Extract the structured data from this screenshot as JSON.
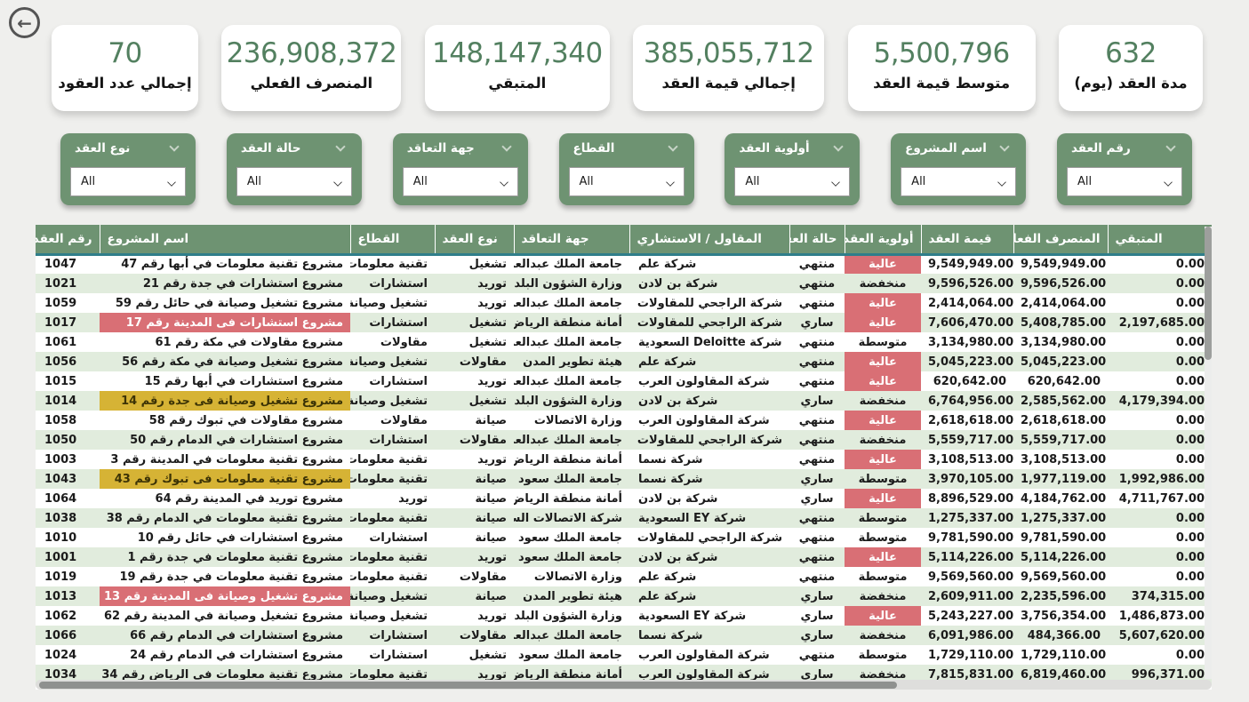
{
  "colors": {
    "page_bg": "#efefed",
    "kpi_value_green": "#538060",
    "filter_green": "#6e9372",
    "table_header_green": "#6e9372",
    "row_alt_green": "#e1ecdd",
    "highlight_red": "#d96f75",
    "highlight_yellow": "#d6b335",
    "header_underline_teal": "#2f7e8a"
  },
  "icons": {
    "back_arrow": "←"
  },
  "kpis": [
    {
      "value": "632",
      "label": "مدة العقد (يوم)"
    },
    {
      "value": "5,500,796",
      "label": "متوسط قيمة العقد"
    },
    {
      "value": "385,055,712",
      "label": "إجمالي قيمة العقد"
    },
    {
      "value": "148,147,340",
      "label": "المتبقي"
    },
    {
      "value": "236,908,372",
      "label": "المنصرف الفعلي"
    },
    {
      "value": "70",
      "label": "إجمالي عدد العقود"
    }
  ],
  "filters": [
    {
      "label": "رقم العقد",
      "value": "All"
    },
    {
      "label": "اسم المشروع",
      "value": "All"
    },
    {
      "label": "أولوية العقد",
      "value": "All"
    },
    {
      "label": "القطاع",
      "value": "All"
    },
    {
      "label": "جهة التعاقد",
      "value": "All"
    },
    {
      "label": "حالة العقد",
      "value": "All"
    },
    {
      "label": "نوع العقد",
      "value": "All"
    }
  ],
  "table": {
    "columns": [
      "رقم العقد",
      "اسم المشروع",
      "القطاع",
      "نوع العقد",
      "جهة التعاقد",
      "المقاول / الاستشاري",
      "حالة العقد",
      "أولوية العقد",
      "قيمة العقد",
      "المنصرف الفعلي",
      "المتبقي"
    ],
    "column_keys": [
      "contract-no",
      "project-name",
      "sector",
      "contract-type",
      "contracting-entity",
      "contractor-consultant",
      "contract-status",
      "contract-priority",
      "contract-value",
      "actual-spent",
      "remaining"
    ],
    "rows": [
      {
        "h": null,
        "p": "high",
        "c": [
          "1047",
          "مشروع تقنية معلومات في أبها رقم 47",
          "تقنية معلومات",
          "تشغيل",
          "جامعة الملك عبدالعزيز",
          "شركة علم",
          "منتهي",
          "عالية",
          "9,549,949.00",
          "9,549,949.00",
          "0.00"
        ]
      },
      {
        "h": null,
        "p": "low",
        "c": [
          "1021",
          "مشروع استشارات في جدة رقم 21",
          "استشارات",
          "توريد",
          "وزارة الشؤون البلدية",
          "شركة بن لادن",
          "منتهي",
          "منخفضة",
          "9,596,526.00",
          "9,596,526.00",
          "0.00"
        ]
      },
      {
        "h": null,
        "p": "high",
        "c": [
          "1059",
          "مشروع تشغيل وصيانة في حائل رقم 59",
          "تشغيل وصيانة",
          "توريد",
          "جامعة الملك عبدالعزيز",
          "شركة الراجحي للمقاولات",
          "منتهي",
          "عالية",
          "2,414,064.00",
          "2,414,064.00",
          "0.00"
        ]
      },
      {
        "h": "red",
        "p": "high",
        "c": [
          "1017",
          "مشروع استشارات فى المدينة رقم 17",
          "استشارات",
          "تشغيل",
          "أمانة منطقة الرياض",
          "شركة الراجحي للمقاولات",
          "ساري",
          "عالية",
          "7,606,470.00",
          "5,408,785.00",
          "2,197,685.00"
        ]
      },
      {
        "h": null,
        "p": "med",
        "c": [
          "1061",
          "مشروع مقاولات في مكة رقم 61",
          "مقاولات",
          "تشغيل",
          "جامعة الملك عبدالعزيز",
          "شركة Deloitte السعودية",
          "منتهي",
          "متوسطة",
          "3,134,980.00",
          "3,134,980.00",
          "0.00"
        ]
      },
      {
        "h": null,
        "p": "high",
        "c": [
          "1056",
          "مشروع تشغيل وصيانة في مكة رقم 56",
          "تشغيل وصيانة",
          "مقاولات",
          "هيئة تطوير المدن",
          "شركة علم",
          "منتهي",
          "عالية",
          "5,045,223.00",
          "5,045,223.00",
          "0.00"
        ]
      },
      {
        "h": null,
        "p": "high",
        "c": [
          "1015",
          "مشروع استشارات في أبها رقم 15",
          "استشارات",
          "توريد",
          "جامعة الملك عبدالعزيز",
          "شركة المقاولون العرب",
          "منتهي",
          "عالية",
          "620,642.00",
          "620,642.00",
          "0.00"
        ]
      },
      {
        "h": "yellow",
        "p": "low",
        "c": [
          "1014",
          "مشروع تشغيل وصيانة فى جدة رقم 14",
          "تشغيل وصيانة",
          "تشغيل",
          "وزارة الشؤون البلدية",
          "شركة بن لادن",
          "ساري",
          "منخفضة",
          "6,764,956.00",
          "2,585,562.00",
          "4,179,394.00"
        ]
      },
      {
        "h": null,
        "p": "high",
        "c": [
          "1058",
          "مشروع مقاولات في تبوك رقم 58",
          "مقاولات",
          "صيانة",
          "وزارة الاتصالات",
          "شركة المقاولون العرب",
          "منتهي",
          "عالية",
          "2,618,618.00",
          "2,618,618.00",
          "0.00"
        ]
      },
      {
        "h": null,
        "p": "low",
        "c": [
          "1050",
          "مشروع استشارات في الدمام رقم 50",
          "استشارات",
          "مقاولات",
          "جامعة الملك عبدالعزيز",
          "شركة الراجحي للمقاولات",
          "منتهي",
          "منخفضة",
          "5,559,717.00",
          "5,559,717.00",
          "0.00"
        ]
      },
      {
        "h": null,
        "p": "high",
        "c": [
          "1003",
          "مشروع تقنية معلومات في المدينة رقم 3",
          "تقنية معلومات",
          "توريد",
          "أمانة منطقة الرياض",
          "شركة نسما",
          "منتهي",
          "عالية",
          "3,108,513.00",
          "3,108,513.00",
          "0.00"
        ]
      },
      {
        "h": "yellow",
        "p": "med",
        "c": [
          "1043",
          "مشروع تقنية معلومات فى تبوك رقم 43",
          "تقنية معلومات",
          "صيانة",
          "جامعة الملك سعود",
          "شركة نسما",
          "ساري",
          "متوسطة",
          "3,970,105.00",
          "1,977,119.00",
          "1,992,986.00"
        ]
      },
      {
        "h": null,
        "p": "high",
        "c": [
          "1064",
          "مشروع توريد في المدينة رقم 64",
          "توريد",
          "صيانة",
          "أمانة منطقة الرياض",
          "شركة بن لادن",
          "ساري",
          "عالية",
          "8,896,529.00",
          "4,184,762.00",
          "4,711,767.00"
        ]
      },
      {
        "h": null,
        "p": "med",
        "c": [
          "1038",
          "مشروع تقنية معلومات في الدمام رقم 38",
          "تقنية معلومات",
          "صيانة",
          "شركة الاتصالات السعودية",
          "شركة EY السعودية",
          "منتهي",
          "متوسطة",
          "1,275,337.00",
          "1,275,337.00",
          "0.00"
        ]
      },
      {
        "h": null,
        "p": "med",
        "c": [
          "1010",
          "مشروع استشارات في حائل رقم 10",
          "استشارات",
          "صيانة",
          "جامعة الملك سعود",
          "شركة الراجحي للمقاولات",
          "منتهي",
          "متوسطة",
          "9,781,590.00",
          "9,781,590.00",
          "0.00"
        ]
      },
      {
        "h": null,
        "p": "high",
        "c": [
          "1001",
          "مشروع تقنية معلومات في جدة رقم 1",
          "تقنية معلومات",
          "توريد",
          "جامعة الملك سعود",
          "شركة بن لادن",
          "منتهي",
          "عالية",
          "5,114,226.00",
          "5,114,226.00",
          "0.00"
        ]
      },
      {
        "h": null,
        "p": "med",
        "c": [
          "1019",
          "مشروع تقنية معلومات في جدة رقم 19",
          "تقنية معلومات",
          "مقاولات",
          "وزارة الاتصالات",
          "شركة علم",
          "منتهي",
          "متوسطة",
          "9,569,560.00",
          "9,569,560.00",
          "0.00"
        ]
      },
      {
        "h": "red",
        "p": "low",
        "c": [
          "1013",
          "مشروع تشغيل وصيانة فى المدينة رقم 13",
          "تشغيل وصيانة",
          "صيانة",
          "هيئة تطوير المدن",
          "شركة علم",
          "ساري",
          "منخفضة",
          "2,609,911.00",
          "2,235,596.00",
          "374,315.00"
        ]
      },
      {
        "h": null,
        "p": "high",
        "c": [
          "1062",
          "مشروع تشغيل وصيانة في المدينة رقم 62",
          "تشغيل وصيانة",
          "توريد",
          "وزارة الشؤون البلدية",
          "شركة EY السعودية",
          "ساري",
          "عالية",
          "5,243,227.00",
          "3,756,354.00",
          "1,486,873.00"
        ]
      },
      {
        "h": null,
        "p": "low",
        "c": [
          "1066",
          "مشروع استشارات في الدمام رقم 66",
          "استشارات",
          "مقاولات",
          "جامعة الملك عبدالعزيز",
          "شركة نسما",
          "ساري",
          "منخفضة",
          "6,091,986.00",
          "484,366.00",
          "5,607,620.00"
        ]
      },
      {
        "h": null,
        "p": "med",
        "c": [
          "1024",
          "مشروع استشارات في الدمام رقم 24",
          "استشارات",
          "تشغيل",
          "جامعة الملك سعود",
          "شركة المقاولون العرب",
          "منتهي",
          "متوسطة",
          "1,729,110.00",
          "1,729,110.00",
          "0.00"
        ]
      },
      {
        "h": null,
        "p": "low",
        "c": [
          "1034",
          "مشروع تقنية معلومات في الرياض رقم 34",
          "تقنية معلومات",
          "توريد",
          "أمانة منطقة الرياض",
          "شركة المقاولون العرب",
          "ساري",
          "منخفضة",
          "7,815,831.00",
          "6,819,460.00",
          "996,371.00"
        ]
      }
    ]
  }
}
